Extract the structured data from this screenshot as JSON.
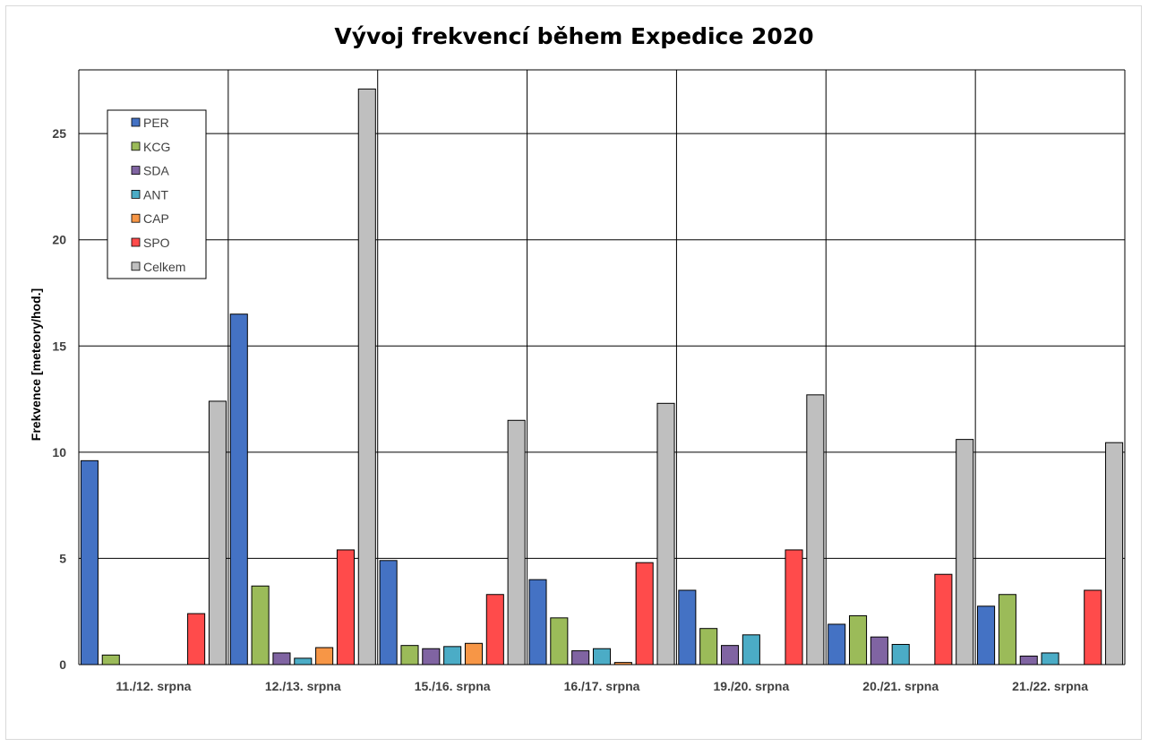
{
  "chart_data": {
    "type": "bar",
    "title": "Vývoj frekvencí během Expedice 2020",
    "ylabel": "Frekvence [meteory/hod.]",
    "xlabel": "",
    "ylim": [
      0,
      28
    ],
    "yticks": [
      0,
      5,
      10,
      15,
      20,
      25
    ],
    "grid": true,
    "legend_position": "top-left",
    "categories": [
      "11./12. srpna",
      "12./13. srpna",
      "15./16. srpna",
      "16./17. srpna",
      "19./20. srpna",
      "20./21. srpna",
      "21./22. srpna"
    ],
    "series": [
      {
        "name": "PER",
        "color": "#4472C4",
        "values": [
          9.6,
          16.5,
          4.9,
          4.0,
          3.5,
          1.9,
          2.75
        ]
      },
      {
        "name": "KCG",
        "color": "#9BBB59",
        "values": [
          0.45,
          3.7,
          0.9,
          2.2,
          1.7,
          2.3,
          3.3
        ]
      },
      {
        "name": "SDA",
        "color": "#8064A2",
        "values": [
          0,
          0.55,
          0.75,
          0.65,
          0.9,
          1.3,
          0.4
        ]
      },
      {
        "name": "ANT",
        "color": "#4BACC6",
        "values": [
          0,
          0.3,
          0.85,
          0.75,
          1.4,
          0.95,
          0.55
        ]
      },
      {
        "name": "CAP",
        "color": "#F79646",
        "values": [
          0,
          0.8,
          1.0,
          0.1,
          0,
          0,
          0
        ]
      },
      {
        "name": "SPO",
        "color": "#FF4B4B",
        "values": [
          2.4,
          5.4,
          3.3,
          4.8,
          5.4,
          4.25,
          3.5
        ]
      },
      {
        "name": "Celkem",
        "color": "#BFBFBF",
        "values": [
          12.4,
          27.1,
          11.5,
          12.3,
          12.7,
          10.6,
          10.45
        ]
      }
    ]
  }
}
